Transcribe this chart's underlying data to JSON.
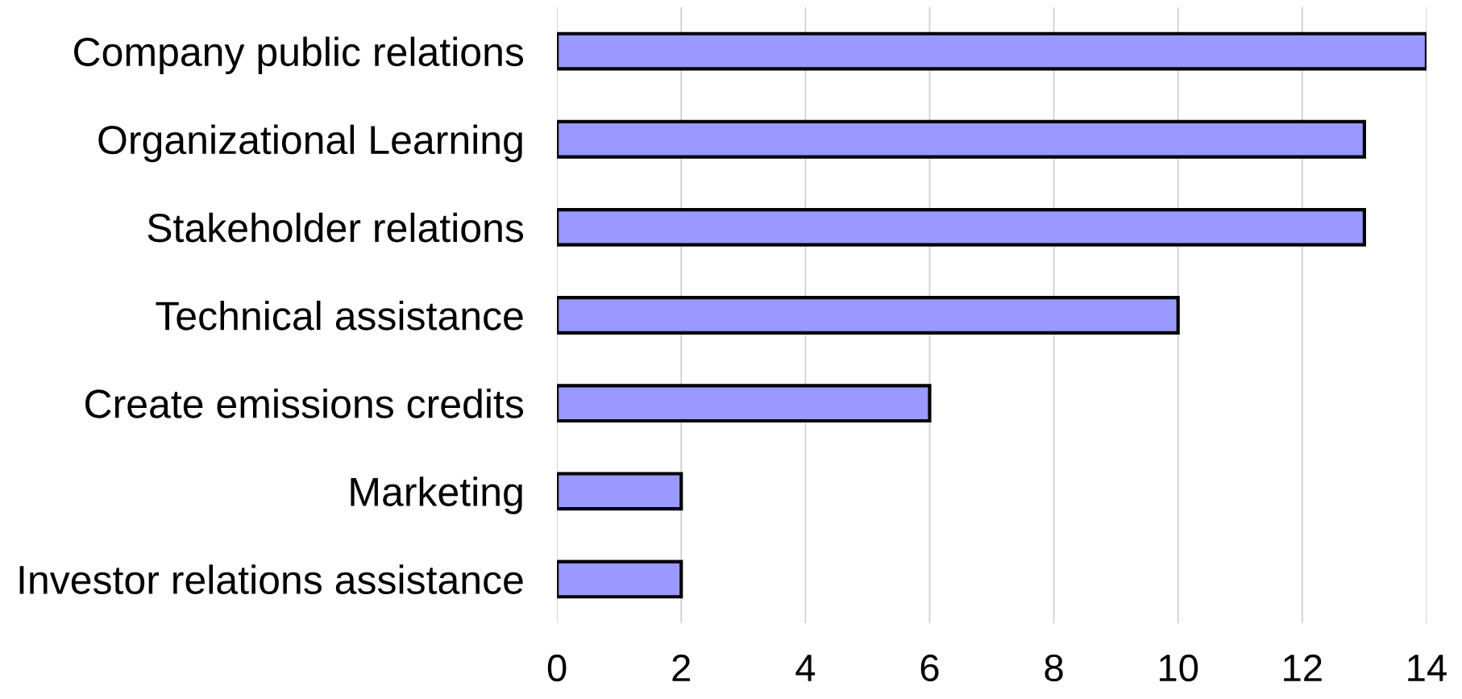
{
  "chart_data": {
    "type": "bar",
    "orientation": "horizontal",
    "categories": [
      "Company public relations",
      "Organizational Learning",
      "Stakeholder relations",
      "Technical assistance",
      "Create emissions credits",
      "Marketing",
      "Investor relations assistance"
    ],
    "values": [
      14,
      13,
      13,
      10,
      6,
      2,
      2
    ],
    "color": "#9999ff",
    "xlim": [
      0,
      14
    ],
    "xticks": [
      0,
      2,
      4,
      6,
      8,
      10,
      12,
      14
    ],
    "grid": "x",
    "legend": false
  }
}
